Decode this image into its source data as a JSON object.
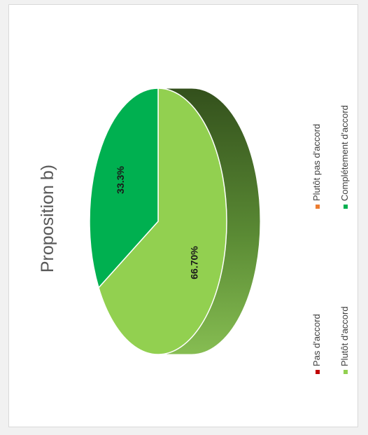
{
  "chart_data": {
    "type": "pie",
    "title": "Proposition b)",
    "orientation": "rotated-90-ccw",
    "style": "3d",
    "legend": {
      "placement": "right",
      "items": [
        {
          "label": "Pas d'accord",
          "color": "#c00000"
        },
        {
          "label": "Plutôt pas d'accord",
          "color": "#ed7d31"
        },
        {
          "label": "Plutôt d'accord",
          "color": "#92d050"
        },
        {
          "label": "Complétement d'accord",
          "color": "#00b050"
        }
      ]
    },
    "slices": [
      {
        "label": "Pas d'accord",
        "value": 0,
        "color": "#c00000"
      },
      {
        "label": "Plutôt pas d'accord",
        "value": 0,
        "color": "#ed7d31"
      },
      {
        "label": "Plutôt d'accord",
        "value": 66.7,
        "data_label": "66.70%",
        "color": "#92d050",
        "side_color": "#3f6a22"
      },
      {
        "label": "Complétement d'accord",
        "value": 33.3,
        "data_label": "33.3%",
        "color": "#00b050",
        "side_color": "#00843c"
      }
    ]
  }
}
